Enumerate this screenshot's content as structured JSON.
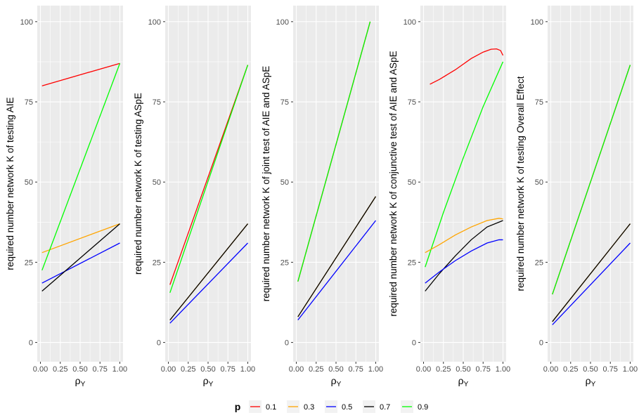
{
  "chart_data": {
    "type": "line",
    "x_axis": {
      "label_main": "ρ",
      "label_sub": "Y",
      "range": [
        -0.04,
        1.04
      ],
      "ticks": [
        0,
        0.25,
        0.5,
        0.75,
        1.0
      ],
      "tick_labels": [
        "0.00",
        "0.25",
        "0.50",
        "0.75",
        "1.00"
      ]
    },
    "y_axis": {
      "range": [
        -6,
        105
      ],
      "ticks": [
        0,
        25,
        50,
        75,
        100
      ],
      "tick_labels": [
        "0",
        "25",
        "50",
        "75",
        "100"
      ]
    },
    "legend": {
      "title": "p",
      "position": "bottom",
      "entries": [
        {
          "label": "0.1",
          "color": "#ff0000"
        },
        {
          "label": "0.3",
          "color": "#ffa500"
        },
        {
          "label": "0.5",
          "color": "#0000ff"
        },
        {
          "label": "0.7",
          "color": "#000000"
        },
        {
          "label": "0.9",
          "color": "#00ff00"
        }
      ]
    },
    "panels": [
      {
        "ylabel": "required number network K of testing AIE",
        "series": [
          {
            "name": "0.1",
            "color": "#ff0000",
            "x": [
              0.02,
              1.0
            ],
            "y": [
              80,
              87
            ]
          },
          {
            "name": "0.3",
            "color": "#ffa500",
            "x": [
              0.02,
              1.0
            ],
            "y": [
              28,
              37
            ]
          },
          {
            "name": "0.5",
            "color": "#0000ff",
            "x": [
              0.02,
              1.0
            ],
            "y": [
              18.5,
              31
            ]
          },
          {
            "name": "0.7",
            "color": "#000000",
            "x": [
              0.02,
              1.0
            ],
            "y": [
              16,
              37
            ]
          },
          {
            "name": "0.9",
            "color": "#00ff00",
            "x": [
              0.02,
              1.0
            ],
            "y": [
              22.5,
              87
            ]
          }
        ]
      },
      {
        "ylabel": "required number network K of testing ASpE",
        "series": [
          {
            "name": "0.1",
            "color": "#ff0000",
            "x": [
              0.02,
              1.0
            ],
            "y": [
              18,
              86.5
            ]
          },
          {
            "name": "0.9",
            "color": "#00ff00",
            "x": [
              0.02,
              1.0
            ],
            "y": [
              15.5,
              86.5
            ]
          },
          {
            "name": "0.3",
            "color": "#ffa500",
            "x": [
              0.02,
              1.0
            ],
            "y": [
              7,
              37
            ]
          },
          {
            "name": "0.7",
            "color": "#000000",
            "x": [
              0.02,
              1.0
            ],
            "y": [
              7,
              37
            ]
          },
          {
            "name": "0.5",
            "color": "#0000ff",
            "x": [
              0.02,
              1.0
            ],
            "y": [
              6,
              31
            ]
          }
        ]
      },
      {
        "ylabel": "required number network K of joint test of AIE and ASpE",
        "series": [
          {
            "name": "0.1",
            "color": "#ff0000",
            "x": [
              0.02,
              0.93
            ],
            "y": [
              19,
              100
            ]
          },
          {
            "name": "0.9",
            "color": "#00ff00",
            "x": [
              0.02,
              0.93
            ],
            "y": [
              19,
              100
            ]
          },
          {
            "name": "0.3",
            "color": "#ffa500",
            "x": [
              0.02,
              1.0
            ],
            "y": [
              8,
              45.5
            ]
          },
          {
            "name": "0.7",
            "color": "#000000",
            "x": [
              0.02,
              1.0
            ],
            "y": [
              8,
              45.5
            ]
          },
          {
            "name": "0.5",
            "color": "#0000ff",
            "x": [
              0.02,
              1.0
            ],
            "y": [
              7,
              38
            ]
          }
        ]
      },
      {
        "ylabel": "required number network K of conjunctive test of AIE and ASpE",
        "series": [
          {
            "name": "0.1",
            "color": "#ff0000",
            "x": [
              0.08,
              0.2,
              0.4,
              0.6,
              0.75,
              0.85,
              0.92,
              0.97,
              1.0
            ],
            "y": [
              80.5,
              82,
              85,
              88.5,
              90.5,
              91.4,
              91.5,
              91,
              89.5
            ]
          },
          {
            "name": "0.9",
            "color": "#00ff00",
            "x": [
              0.02,
              0.25,
              0.5,
              0.75,
              1.0
            ],
            "y": [
              23.5,
              40.5,
              57.5,
              73.5,
              87.5
            ]
          },
          {
            "name": "0.3",
            "color": "#ffa500",
            "x": [
              0.02,
              0.2,
              0.4,
              0.6,
              0.8,
              0.95,
              1.0
            ],
            "y": [
              28,
              30.5,
              33.5,
              36,
              38,
              38.7,
              38.5
            ]
          },
          {
            "name": "0.7",
            "color": "#000000",
            "x": [
              0.02,
              0.2,
              0.4,
              0.6,
              0.8,
              1.0
            ],
            "y": [
              16,
              21.5,
              27,
              32,
              36,
              38
            ]
          },
          {
            "name": "0.5",
            "color": "#0000ff",
            "x": [
              0.02,
              0.2,
              0.4,
              0.6,
              0.8,
              0.95,
              1.0
            ],
            "y": [
              18.5,
              22,
              25.5,
              28.5,
              31,
              32,
              32
            ]
          }
        ]
      },
      {
        "ylabel": "required number network K of testing Overall Effect",
        "series": [
          {
            "name": "0.1",
            "color": "#ff0000",
            "x": [
              0.02,
              1.0
            ],
            "y": [
              15,
              86.5
            ]
          },
          {
            "name": "0.9",
            "color": "#00ff00",
            "x": [
              0.02,
              1.0
            ],
            "y": [
              15,
              86.5
            ]
          },
          {
            "name": "0.3",
            "color": "#ffa500",
            "x": [
              0.02,
              1.0
            ],
            "y": [
              6.5,
              37
            ]
          },
          {
            "name": "0.7",
            "color": "#000000",
            "x": [
              0.02,
              1.0
            ],
            "y": [
              6.5,
              37
            ]
          },
          {
            "name": "0.5",
            "color": "#0000ff",
            "x": [
              0.02,
              1.0
            ],
            "y": [
              5.5,
              31
            ]
          }
        ]
      }
    ]
  }
}
